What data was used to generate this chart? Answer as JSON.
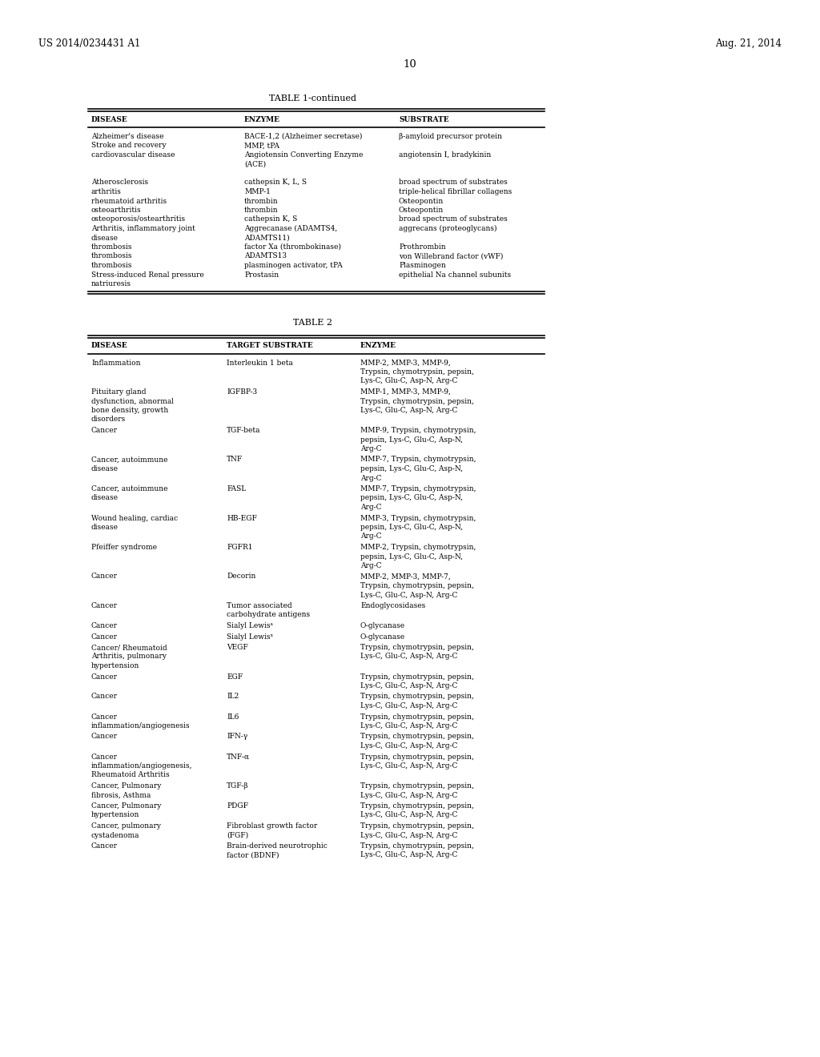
{
  "bg_color": "#ffffff",
  "header_left": "US 2014/0234431 A1",
  "header_right": "Aug. 21, 2014",
  "page_num": "10",
  "table1_title": "TABLE 1-continued",
  "table1_cols": [
    "DISEASE",
    "ENZYME",
    "SUBSTRATE"
  ],
  "table2_title": "TABLE 2",
  "table2_cols": [
    "DISEASE",
    "TARGET SUBSTRATE",
    "ENZYME"
  ],
  "font_size": 6.5,
  "header_font_size": 8.5,
  "title_font_size": 8.0,
  "col_header_font_size": 6.5
}
